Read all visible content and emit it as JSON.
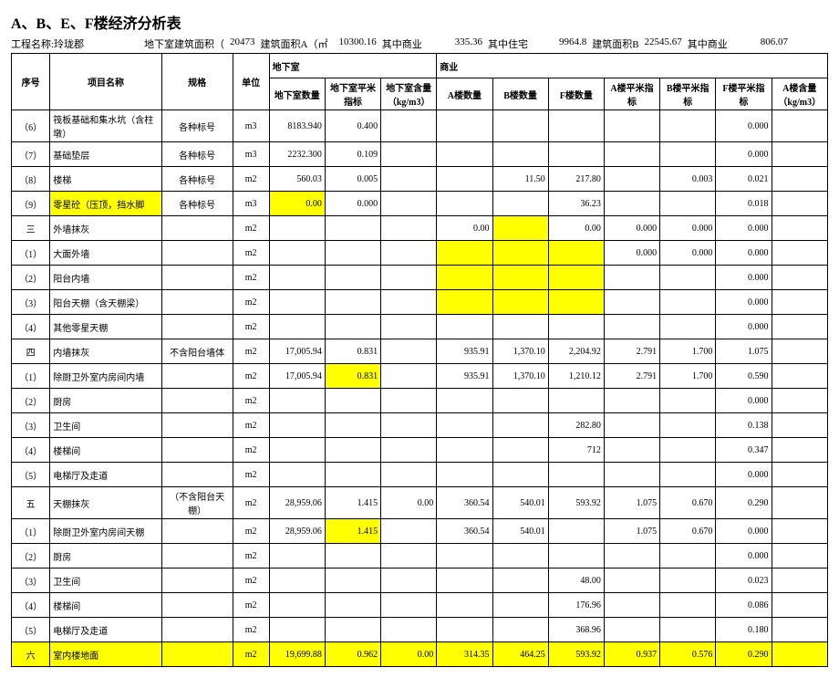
{
  "title": "A、B、E、F楼经济分析表",
  "meta": {
    "projLabel": "工程名称:玲珑郡",
    "basementAreaLabel": "地下室建筑面积（",
    "basementArea": "20473",
    "areaALabel": "建筑面积A（㎡",
    "areaA": "10300.16",
    "bizALabel": "其中商业",
    "bizA": "335.36",
    "resLabel": "其中住宅",
    "res": "9964.8",
    "areaBLabel": "建筑面积B",
    "areaB": "22545.67",
    "bizBLabel": "其中商业",
    "bizB": "806.07"
  },
  "headers": {
    "seq": "序号",
    "name": "项目名称",
    "spec": "规格",
    "unit": "单位",
    "grp1": "地下室",
    "grp2": "商业",
    "g1a": "地下室数量",
    "g1b": "地下室平米指标",
    "g1c": "地下室含量（kg/m3）",
    "g2a": "A楼数量",
    "g2b": "B楼数量",
    "g2c": "F楼数量",
    "g2d": "A楼平米指标",
    "g2e": "B楼平米指标",
    "g2f": "F楼平米指标",
    "g2g": "A楼含量（kg/m3）"
  },
  "rows": [
    {
      "seq": "（6）",
      "name": "筏板基础和集水坑（含柱墩）",
      "spec": "各种标号",
      "unit": "m3",
      "c": [
        "8183.940",
        "0.400",
        "",
        "",
        "",
        "",
        "",
        "",
        "0.000",
        ""
      ]
    },
    {
      "seq": "（7）",
      "name": "基础垫层",
      "spec": "各种标号",
      "unit": "m3",
      "c": [
        "2232.300",
        "0.109",
        "",
        "",
        "",
        "",
        "",
        "",
        "0.000",
        ""
      ]
    },
    {
      "seq": "（8）",
      "name": "楼梯",
      "spec": "各种标号",
      "unit": "m2",
      "c": [
        "560.03",
        "0.005",
        "",
        "",
        "11.50",
        "217.80",
        "",
        "0.003",
        "0.021",
        ""
      ]
    },
    {
      "seq": "（9）",
      "name": "零星砼（压顶，挡水脚",
      "spec": "各种标号",
      "unit": "m3",
      "c": [
        "0.00",
        "0.000",
        "",
        "",
        "",
        "36.23",
        "",
        "",
        "0.018",
        ""
      ],
      "hl": {
        "name": true,
        "0": true
      }
    },
    {
      "seq": "三",
      "name": "外墙抹灰",
      "spec": "",
      "unit": "m2",
      "c": [
        "",
        "",
        "",
        "0.00",
        "",
        "0.00",
        "0.000",
        "0.000",
        "0.000",
        ""
      ],
      "hl": {
        "4": true
      }
    },
    {
      "seq": "（1）",
      "name": "大面外墙",
      "spec": "",
      "unit": "m2",
      "c": [
        "",
        "",
        "",
        "",
        "",
        "",
        "0.000",
        "0.000",
        "0.000",
        ""
      ],
      "hl": {
        "3": true,
        "4": true,
        "5": true
      }
    },
    {
      "seq": "（2）",
      "name": "阳台内墙",
      "spec": "",
      "unit": "m2",
      "c": [
        "",
        "",
        "",
        "",
        "",
        "",
        "",
        "",
        "0.000",
        ""
      ],
      "hl": {
        "3": true,
        "4": true,
        "5": true
      }
    },
    {
      "seq": "（3）",
      "name": "阳台天棚（含天棚梁）",
      "spec": "",
      "unit": "m2",
      "c": [
        "",
        "",
        "",
        "",
        "",
        "",
        "",
        "",
        "0.000",
        ""
      ],
      "hl": {
        "3": true,
        "4": true,
        "5": true
      }
    },
    {
      "seq": "（4）",
      "name": "其他零星天棚",
      "spec": "",
      "unit": "m2",
      "c": [
        "",
        "",
        "",
        "",
        "",
        "",
        "",
        "",
        "0.000",
        ""
      ]
    },
    {
      "seq": "四",
      "name": "内墙抹灰",
      "spec": "不含阳台墙体",
      "unit": "m2",
      "c": [
        "17,005.94",
        "0.831",
        "",
        "935.91",
        "1,370.10",
        "2,204.92",
        "2.791",
        "1.700",
        "1.075",
        ""
      ]
    },
    {
      "seq": "（1）",
      "name": "除厨卫外室内房间内墙",
      "spec": "",
      "unit": "m2",
      "c": [
        "17,005.94",
        "0.831",
        "",
        "935.91",
        "1,370.10",
        "1,210.12",
        "2.791",
        "1.700",
        "0.590",
        ""
      ],
      "hl": {
        "1": true
      }
    },
    {
      "seq": "（2）",
      "name": "厨房",
      "spec": "",
      "unit": "m2",
      "c": [
        "",
        "",
        "",
        "",
        "",
        "",
        "",
        "",
        "0.000",
        ""
      ]
    },
    {
      "seq": "（3）",
      "name": "卫生间",
      "spec": "",
      "unit": "m2",
      "c": [
        "",
        "",
        "",
        "",
        "",
        "282.80",
        "",
        "",
        "0.138",
        ""
      ]
    },
    {
      "seq": "（4）",
      "name": "楼梯间",
      "spec": "",
      "unit": "m2",
      "c": [
        "",
        "",
        "",
        "",
        "",
        "712",
        "",
        "",
        "0.347",
        ""
      ]
    },
    {
      "seq": "（5）",
      "name": "电梯厅及走道",
      "spec": "",
      "unit": "m2",
      "c": [
        "",
        "",
        "",
        "",
        "",
        "",
        "",
        "",
        "0.000",
        ""
      ]
    },
    {
      "seq": "五",
      "name": "天棚抹灰",
      "spec": "（不含阳台天棚）",
      "unit": "m2",
      "c": [
        "28,959.06",
        "1.415",
        "0.00",
        "360.54",
        "540.01",
        "593.92",
        "1.075",
        "0.670",
        "0.290",
        ""
      ]
    },
    {
      "seq": "（1）",
      "name": "除厨卫外室内房间天棚",
      "spec": "",
      "unit": "m2",
      "c": [
        "28,959.06",
        "1.415",
        "",
        "360.54",
        "540.01",
        "",
        "1.075",
        "0.670",
        "0.000",
        ""
      ],
      "hl": {
        "1": true
      }
    },
    {
      "seq": "（2）",
      "name": "厨房",
      "spec": "",
      "unit": "m2",
      "c": [
        "",
        "",
        "",
        "",
        "",
        "",
        "",
        "",
        "0.000",
        ""
      ]
    },
    {
      "seq": "（3）",
      "name": "卫生间",
      "spec": "",
      "unit": "m2",
      "c": [
        "",
        "",
        "",
        "",
        "",
        "48.00",
        "",
        "",
        "0.023",
        ""
      ]
    },
    {
      "seq": "（4）",
      "name": "楼梯间",
      "spec": "",
      "unit": "m2",
      "c": [
        "",
        "",
        "",
        "",
        "",
        "176.96",
        "",
        "",
        "0.086",
        ""
      ]
    },
    {
      "seq": "（5）",
      "name": "电梯厅及走道",
      "spec": "",
      "unit": "m2",
      "c": [
        "",
        "",
        "",
        "",
        "",
        "368.96",
        "",
        "",
        "0.180",
        ""
      ]
    },
    {
      "seq": "六",
      "name": "室内楼地面",
      "spec": "",
      "unit": "m2",
      "c": [
        "19,699.88",
        "0.962",
        "0.00",
        "314.35",
        "464.25",
        "593.92",
        "0.937",
        "0.576",
        "0.290",
        ""
      ],
      "rowHl": true
    }
  ]
}
